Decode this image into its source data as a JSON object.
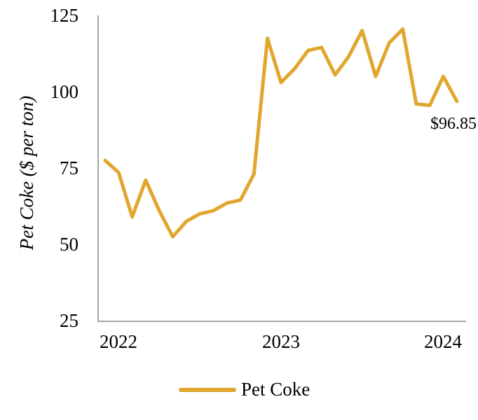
{
  "chart_data": {
    "type": "line",
    "title": "",
    "xlabel": "",
    "ylabel": "Pet Coke ($ per ton)",
    "ylim": [
      25,
      125
    ],
    "y_ticks": [
      25,
      50,
      75,
      100,
      125
    ],
    "x_tick_labels": [
      "2022",
      "2023",
      "2024"
    ],
    "grid": false,
    "legend_position": "bottom",
    "axis_color": "#A6A6A6",
    "x": [
      "Dec-2021",
      "Jan-2022",
      "Feb-2022",
      "Mar-2022",
      "Apr-2022",
      "May-2022",
      "Jun-2022",
      "Jul-2022",
      "Aug-2022",
      "Sep-2022",
      "Oct-2022",
      "Nov-2022",
      "Dec-2022",
      "Jan-2023",
      "Feb-2023",
      "Mar-2023",
      "Apr-2023",
      "May-2023",
      "Jun-2023",
      "Jul-2023",
      "Aug-2023",
      "Sep-2023",
      "Oct-2023",
      "Nov-2023",
      "Dec-2023",
      "Jan-2024",
      "Feb-2024"
    ],
    "series": [
      {
        "name": "Pet Coke",
        "color": "#E0A62E",
        "values": [
          77.5,
          73.5,
          59,
          71,
          61,
          52.5,
          57.5,
          60,
          61,
          63.5,
          64.5,
          73,
          117.5,
          103,
          107.5,
          113.5,
          114.5,
          105.5,
          111.5,
          120,
          105,
          116,
          120.5,
          96,
          95.5,
          105,
          96.85
        ]
      }
    ],
    "annotation": {
      "text": "$96.85",
      "point": "Feb-2024",
      "value": 96.85
    }
  }
}
